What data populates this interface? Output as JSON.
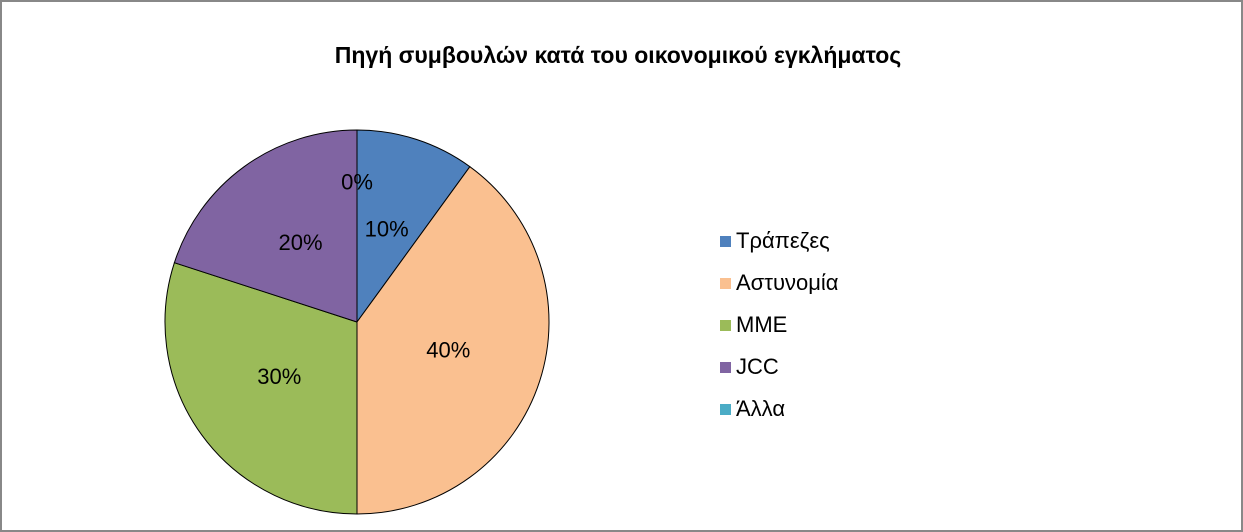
{
  "chart_data": {
    "type": "pie",
    "title": "Πηγή συμβουλών κατά του οικονομικού εγκλήματος",
    "categories": [
      "Τράπεζες",
      "Αστυνομία",
      "ΜΜΕ",
      "JCC",
      "Άλλα"
    ],
    "values": [
      10,
      40,
      30,
      20,
      0
    ],
    "value_labels": [
      "10%",
      "40%",
      "30%",
      "20%",
      "0%"
    ],
    "colors": [
      "#4f81bd",
      "#fac090",
      "#9bbb59",
      "#8064a2",
      "#4bacc6"
    ],
    "legend": "right"
  }
}
